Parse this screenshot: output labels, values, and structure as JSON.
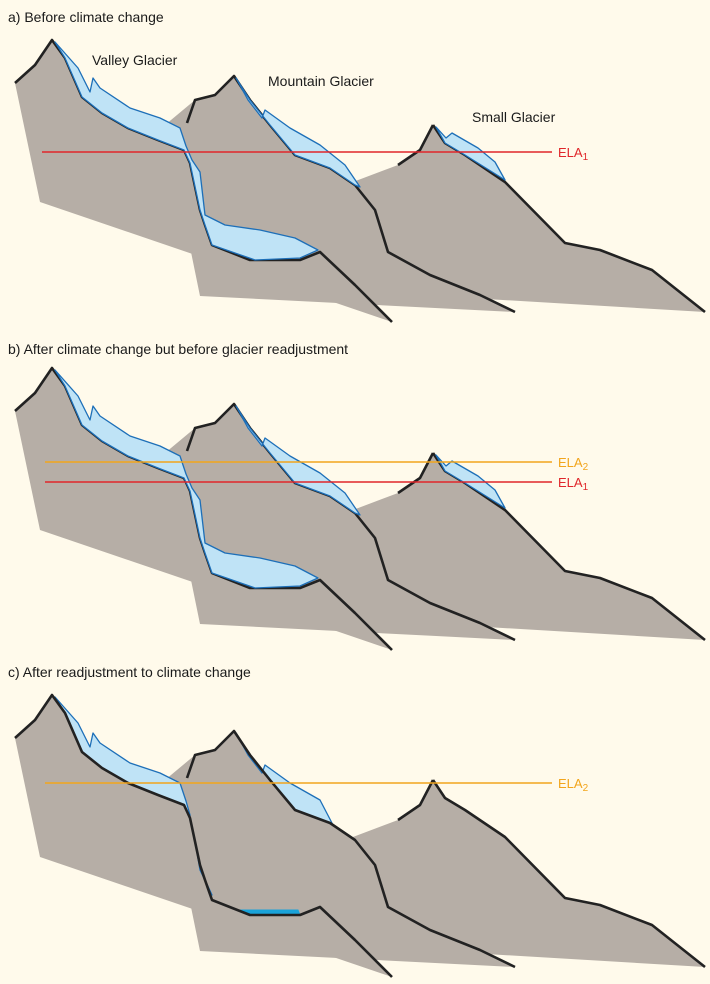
{
  "panels": [
    {
      "title": "a) Before climate change",
      "labels": {
        "valley": "Valley Glacier",
        "mountain": "Mountain Glacier",
        "small": "Small Glacier"
      },
      "ela": [
        {
          "name": "ELA",
          "sub": "1",
          "color": "#e0262a"
        }
      ]
    },
    {
      "title": "b) After climate change but before glacier readjustment",
      "ela": [
        {
          "name": "ELA",
          "sub": "2",
          "color": "#f2a51c"
        },
        {
          "name": "ELA",
          "sub": "1",
          "color": "#e0262a"
        }
      ]
    },
    {
      "title": "c) After readjustment to climate change",
      "ela": [
        {
          "name": "ELA",
          "sub": "2",
          "color": "#f2a51c"
        }
      ]
    }
  ],
  "colors": {
    "background": "#fffaeb",
    "rock": "#b6aea6",
    "ridge": "#222222",
    "ice_fill": "#bfe3f6",
    "ice_outline": "#1d6fb8",
    "lake": "#1aa3d9"
  }
}
